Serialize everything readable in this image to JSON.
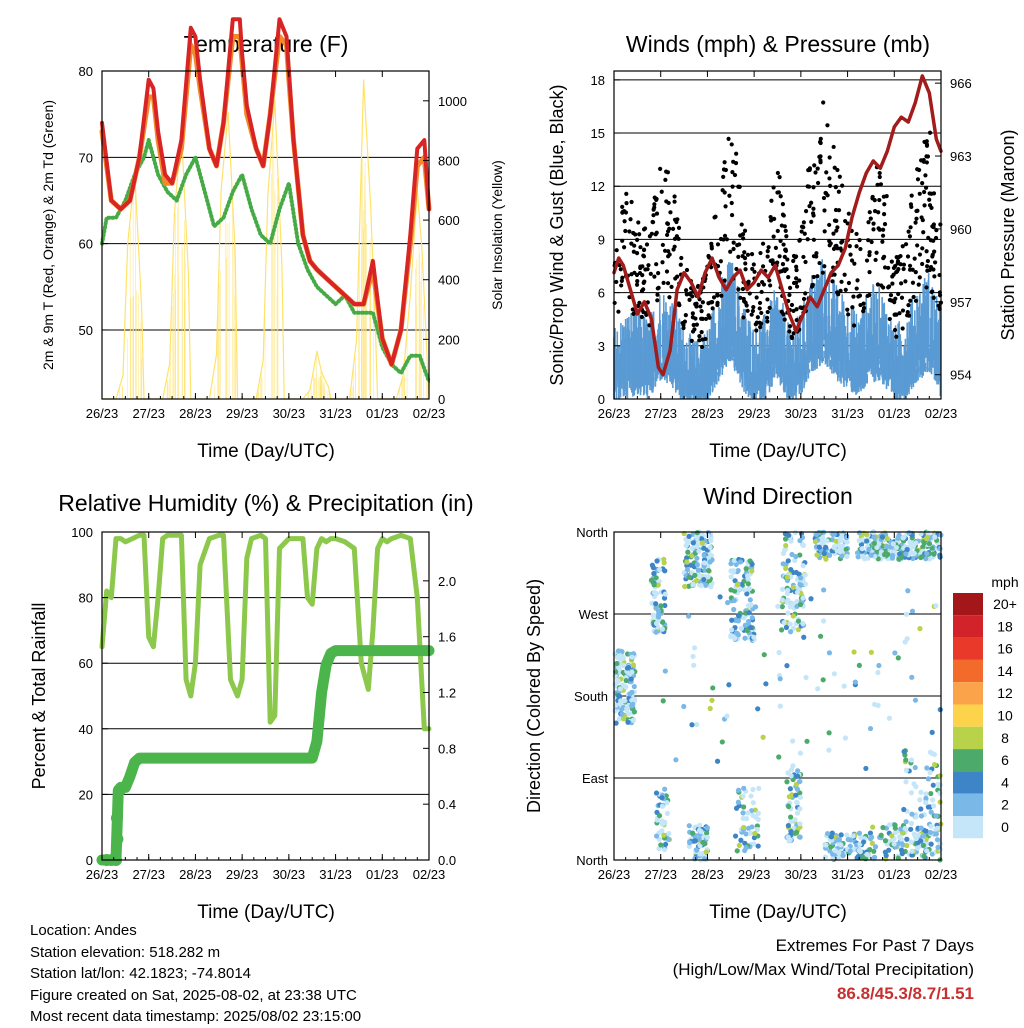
{
  "x_ticks": [
    "26/23",
    "27/23",
    "28/23",
    "29/23",
    "30/23",
    "31/23",
    "01/23",
    "02/23"
  ],
  "colors": {
    "temp_2m": "#d82424",
    "temp_9m": "#f08a2a",
    "dewpoint": "#46aa46",
    "solar": "#ffe26a",
    "wind_sonic": "#5a9bd4",
    "wind_gust": "#000000",
    "pressure": "#a31c1c",
    "rh": "#8cc84b",
    "precip": "#4bb44b"
  },
  "chart_data": [
    {
      "type": "line",
      "title": "Temperature (F)",
      "xlabel": "Time (Day/UTC)",
      "ylabel": "2m & 9m T (Red, Orange) & 2m Td (Green)",
      "y2label": "Solar Insolation (Yellow)",
      "ylim": [
        42,
        80
      ],
      "y_ticks": [
        50,
        60,
        70,
        80
      ],
      "y2lim": [
        0,
        1100
      ],
      "y2_ticks": [
        0,
        200,
        400,
        600,
        800,
        1000
      ],
      "xlim": [
        0,
        7
      ],
      "grid": true,
      "series": [
        {
          "name": "2m T",
          "x": [
            0,
            0.2,
            0.4,
            0.6,
            0.8,
            1.0,
            1.1,
            1.2,
            1.35,
            1.5,
            1.7,
            1.9,
            2.0,
            2.1,
            2.3,
            2.45,
            2.6,
            2.8,
            2.95,
            3.0,
            3.1,
            3.3,
            3.45,
            3.6,
            3.8,
            3.95,
            4.0,
            4.1,
            4.3,
            4.45,
            4.6,
            4.8,
            5.0,
            5.2,
            5.4,
            5.6,
            5.8,
            6.0,
            6.2,
            6.4,
            6.6,
            6.75,
            6.9,
            7.0
          ],
          "y": [
            74,
            65,
            64,
            65,
            70,
            79,
            78,
            73,
            68,
            67,
            72,
            85,
            84,
            79,
            71,
            69,
            74,
            86,
            86,
            82,
            76,
            71,
            69,
            75,
            86,
            84,
            80,
            72,
            61,
            58,
            57,
            56,
            55,
            54,
            53,
            53,
            58,
            49,
            46,
            50,
            61,
            71,
            72,
            64
          ]
        },
        {
          "name": "9m T",
          "x": [
            0,
            0.2,
            0.4,
            0.6,
            0.8,
            1.0,
            1.1,
            1.2,
            1.35,
            1.5,
            1.7,
            1.9,
            2.0,
            2.1,
            2.3,
            2.45,
            2.6,
            2.8,
            2.95,
            3.0,
            3.1,
            3.3,
            3.45,
            3.6,
            3.8,
            3.95,
            4.0,
            4.1,
            4.3,
            4.45,
            4.6,
            4.8,
            5.0,
            5.2,
            5.4,
            5.6,
            5.8,
            6.0,
            6.2,
            6.4,
            6.6,
            6.75,
            6.9,
            7.0
          ],
          "y": [
            73,
            65,
            64,
            65,
            70,
            77,
            77,
            72,
            67,
            67,
            71,
            83,
            82,
            78,
            71,
            69,
            74,
            84,
            84,
            81,
            75,
            71,
            69,
            75,
            84,
            83,
            79,
            72,
            61,
            58,
            57,
            56,
            55,
            54,
            53,
            53,
            57,
            49,
            46,
            50,
            60,
            69,
            70,
            64
          ]
        },
        {
          "name": "2m Td",
          "x": [
            0,
            0.1,
            0.3,
            0.5,
            0.7,
            0.9,
            1.0,
            1.2,
            1.4,
            1.6,
            1.8,
            2.0,
            2.2,
            2.4,
            2.6,
            2.8,
            3.0,
            3.2,
            3.4,
            3.6,
            3.8,
            4.0,
            4.2,
            4.4,
            4.6,
            4.8,
            5.0,
            5.2,
            5.4,
            5.6,
            5.8,
            6.0,
            6.2,
            6.4,
            6.6,
            6.8,
            7.0
          ],
          "y": [
            60,
            63,
            63,
            65,
            68,
            70,
            72,
            68,
            66,
            65,
            68,
            70,
            66,
            62,
            63,
            66,
            68,
            64,
            61,
            60,
            64,
            67,
            60,
            57,
            55,
            54,
            53,
            54,
            52,
            52,
            52,
            48,
            46,
            45,
            47,
            47,
            44
          ]
        },
        {
          "name": "Solar Insolation",
          "axis": "y2",
          "x": [
            0,
            0.3,
            0.45,
            0.55,
            0.7,
            0.85,
            0.9,
            1.3,
            1.45,
            1.55,
            1.7,
            1.85,
            1.9,
            2.3,
            2.45,
            2.55,
            2.7,
            2.85,
            2.9,
            3.3,
            3.45,
            3.55,
            3.7,
            3.85,
            3.9,
            4.3,
            4.45,
            4.6,
            4.7,
            4.85,
            4.9,
            5.3,
            5.45,
            5.6,
            5.75,
            5.85,
            5.9,
            6.3,
            6.45,
            6.6,
            6.75,
            6.85,
            7.0
          ],
          "y": [
            0,
            0,
            80,
            520,
            760,
            300,
            0,
            0,
            120,
            620,
            900,
            420,
            0,
            0,
            150,
            700,
            960,
            500,
            0,
            0,
            130,
            680,
            1000,
            450,
            0,
            0,
            30,
            160,
            90,
            40,
            0,
            0,
            200,
            1070,
            650,
            250,
            0,
            0,
            80,
            350,
            700,
            500,
            0
          ]
        }
      ]
    },
    {
      "type": "scatter",
      "title": "Winds (mph) & Pressure (mb)",
      "xlabel": "Time (Day/UTC)",
      "ylabel": "Sonic/Prop Wind & Gust (Blue, Black)",
      "y2label": "Station Pressure (Maroon)",
      "ylim": [
        0,
        18.5
      ],
      "y_ticks": [
        0,
        3,
        6,
        9,
        12,
        15,
        18
      ],
      "y2lim": [
        953,
        966.5
      ],
      "y2_ticks": [
        954,
        957,
        960,
        963,
        966
      ],
      "xlim": [
        0,
        7
      ],
      "grid": true,
      "series": [
        {
          "name": "Sonic/Prop Wind",
          "kind": "band",
          "envelope_mean": [
            2.5,
            3,
            3.2,
            2.8,
            4,
            3.5,
            2.5,
            2,
            2.5,
            4,
            5,
            3.5,
            2.5,
            3,
            4,
            2.5,
            3,
            4.5,
            5,
            4,
            3.5,
            3,
            4,
            3.8,
            2.5,
            3,
            4,
            4.5,
            3
          ]
        },
        {
          "name": "Gust",
          "kind": "points",
          "envelope_mean": [
            6,
            8,
            7,
            6,
            9,
            8,
            5,
            4,
            5,
            8,
            11,
            7,
            5,
            6,
            9,
            5,
            6,
            10,
            11,
            9,
            7,
            6,
            8,
            9,
            5,
            6,
            9,
            10,
            7
          ]
        },
        {
          "name": "Station Pressure",
          "axis": "y2",
          "x": [
            0,
            0.1,
            0.2,
            0.35,
            0.5,
            0.65,
            0.8,
            0.95,
            1.05,
            1.2,
            1.35,
            1.5,
            1.65,
            1.8,
            1.95,
            2.1,
            2.25,
            2.4,
            2.55,
            2.7,
            2.85,
            3.0,
            3.15,
            3.3,
            3.45,
            3.6,
            3.75,
            3.9,
            4.05,
            4.2,
            4.35,
            4.5,
            4.65,
            4.8,
            4.95,
            5.1,
            5.25,
            5.4,
            5.55,
            5.7,
            5.85,
            6.0,
            6.15,
            6.3,
            6.45,
            6.6,
            6.75,
            6.9,
            7.0
          ],
          "y": [
            958.2,
            958.8,
            958.5,
            957.5,
            956.5,
            957,
            956.3,
            954.3,
            954,
            955,
            957.5,
            958.2,
            957.8,
            957.2,
            958.2,
            958.8,
            958,
            957.5,
            958,
            958.3,
            957.5,
            957.8,
            958.3,
            958,
            958.5,
            957.5,
            956.5,
            955.8,
            956.5,
            957.2,
            956.8,
            957.5,
            958.2,
            958.5,
            959.2,
            960.5,
            961.5,
            962.3,
            962.8,
            962.5,
            963.2,
            964.2,
            964.6,
            964.4,
            965.2,
            966.3,
            965.6,
            963.7,
            963.2
          ]
        }
      ]
    },
    {
      "type": "line",
      "title": "Relative Humidity (%) & Precipitation (in)",
      "xlabel": "Time (Day/UTC)",
      "ylabel": "Percent & Total Rainfall",
      "y2label": "",
      "ylim": [
        0,
        100
      ],
      "y_ticks": [
        0,
        20,
        40,
        60,
        80,
        100
      ],
      "y2lim": [
        0,
        2.35
      ],
      "y2_ticks": [
        "0.0",
        "0.4",
        "0.8",
        "1.2",
        "1.6",
        "2.0"
      ],
      "xlim": [
        0,
        7
      ],
      "grid": true,
      "series": [
        {
          "name": "Relative Humidity",
          "x": [
            0,
            0.1,
            0.2,
            0.3,
            0.4,
            0.5,
            0.65,
            0.8,
            0.9,
            1.0,
            1.1,
            1.2,
            1.3,
            1.4,
            1.6,
            1.7,
            1.8,
            1.9,
            2.0,
            2.1,
            2.3,
            2.5,
            2.6,
            2.75,
            2.9,
            3.0,
            3.1,
            3.2,
            3.4,
            3.5,
            3.6,
            3.7,
            3.8,
            4.0,
            4.1,
            4.3,
            4.4,
            4.5,
            4.6,
            4.7,
            4.8,
            4.9,
            5.0,
            5.2,
            5.4,
            5.55,
            5.7,
            5.8,
            5.9,
            6.0,
            6.1,
            6.2,
            6.4,
            6.6,
            6.75,
            6.9,
            7.0
          ],
          "y": [
            65,
            82,
            80,
            98,
            98,
            97,
            98,
            99,
            99,
            68,
            65,
            80,
            98,
            99,
            99,
            99,
            55,
            50,
            60,
            90,
            98,
            99,
            99,
            55,
            50,
            55,
            92,
            98,
            99,
            98,
            42,
            44,
            95,
            98,
            98,
            98,
            80,
            78,
            95,
            98,
            97,
            98,
            98,
            97,
            95,
            60,
            52,
            70,
            95,
            98,
            97,
            98,
            99,
            98,
            80,
            40,
            40
          ]
        },
        {
          "name": "Total Precipitation",
          "axis": "y2",
          "x": [
            0,
            0.3,
            0.35,
            0.4,
            0.5,
            0.6,
            0.7,
            0.8,
            0.9,
            1.0,
            1.5,
            2.0,
            3.0,
            4.0,
            4.5,
            4.6,
            4.7,
            4.8,
            4.9,
            5.0,
            5.2,
            6.0,
            7.0
          ],
          "y": [
            0,
            0,
            0.5,
            0.52,
            0.52,
            0.6,
            0.7,
            0.73,
            0.73,
            0.73,
            0.73,
            0.73,
            0.73,
            0.73,
            0.73,
            0.85,
            1.2,
            1.4,
            1.48,
            1.5,
            1.5,
            1.5,
            1.5
          ]
        }
      ]
    },
    {
      "type": "scatter",
      "title": "Wind Direction",
      "xlabel": "Time (Day/UTC)",
      "ylabel": "Direction (Colored By Speed)",
      "ylim": [
        0,
        360
      ],
      "y_ticks": [
        "North",
        "East",
        "South",
        "West",
        "North"
      ],
      "xlim": [
        0,
        7
      ],
      "grid": true,
      "legend": {
        "title": "mph",
        "position": "right",
        "labels": [
          "20+",
          "18",
          "16",
          "14",
          "12",
          "10",
          "8",
          "6",
          "4",
          "2",
          "0"
        ],
        "colors": [
          "#a3171b",
          "#d3232a",
          "#e8392a",
          "#f26b2b",
          "#fba34a",
          "#fdd34b",
          "#b8d24a",
          "#4caa6a",
          "#3d85c6",
          "#7ab8e8",
          "#c5e6f8"
        ]
      }
    }
  ],
  "info": {
    "location": "Location: Andes",
    "elevation": "Station elevation: 518.282 m",
    "latlon": "Station lat/lon: 42.1823; -74.8014",
    "created": "Figure created on Sat, 2025-08-02, at 23:38 UTC",
    "recent": "Most recent data timestamp: 2025/08/02 23:15:00"
  },
  "extremes": {
    "title": "Extremes For Past 7 Days",
    "subtitle": "(High/Low/Max Wind/Total Precipitation)",
    "values": "86.8/45.3/8.7/1.51"
  }
}
